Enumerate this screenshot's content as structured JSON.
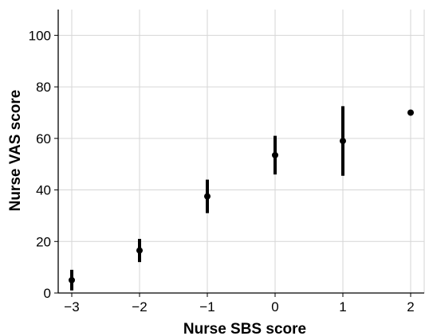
{
  "chart_data": {
    "type": "scatter",
    "title": "",
    "xlabel": "Nurse SBS score",
    "ylabel": "Nurse VAS score",
    "x_ticks": [
      "−3",
      "−2",
      "−1",
      "0",
      "1",
      "2"
    ],
    "y_ticks": [
      "0",
      "20",
      "40",
      "60",
      "80",
      "100"
    ],
    "xlim": [
      -3.2,
      2.2
    ],
    "ylim": [
      0,
      110
    ],
    "grid": true,
    "colors": {
      "marker": "#000000",
      "errorbar": "#000000",
      "grid": "#d6d6d6",
      "axis": "#000000"
    },
    "points": [
      {
        "x": -3,
        "y": 5,
        "low": 1,
        "high": 9
      },
      {
        "x": -2,
        "y": 16.5,
        "low": 12,
        "high": 21
      },
      {
        "x": -1,
        "y": 37.5,
        "low": 31,
        "high": 44
      },
      {
        "x": 0,
        "y": 53.5,
        "low": 46,
        "high": 61
      },
      {
        "x": 1,
        "y": 59,
        "low": 45.5,
        "high": 72.5
      },
      {
        "x": 2,
        "y": 70,
        "low": null,
        "high": null
      }
    ]
  }
}
